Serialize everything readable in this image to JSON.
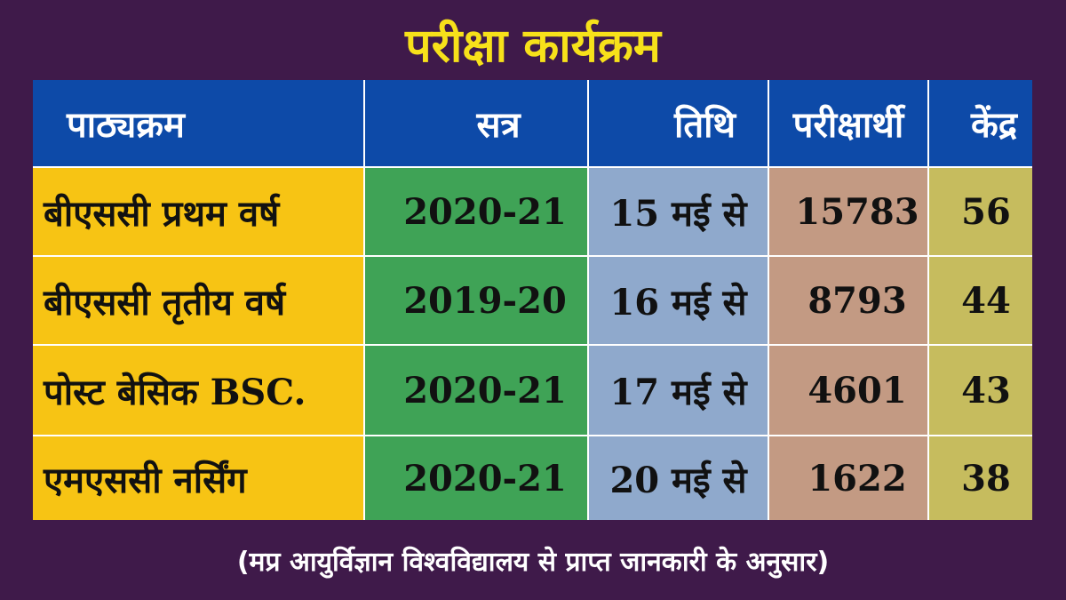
{
  "header": {
    "title": "परीक्षा कार्यक्रम"
  },
  "table": {
    "columns": [
      "पाठ्यक्रम",
      "सत्र",
      "तिथि",
      "परीक्षार्थी",
      "केंद्र"
    ],
    "rows": [
      [
        "बीएससी प्रथम वर्ष",
        "2020-21",
        "15 मई से",
        15783,
        56
      ],
      [
        "बीएससी तृतीय वर्ष",
        "2019-20",
        "16 मई से",
        8793,
        44
      ],
      [
        "पोस्ट बेसिक BSC.",
        "2020-21",
        "17 मई से",
        4601,
        43
      ],
      [
        "एमएससी नर्सिंग",
        "2020-21",
        "20 मई से",
        1622,
        38
      ]
    ]
  },
  "footer": {
    "note": "(मप्र आयुर्विज्ञान विश्वविद्यालय से प्राप्त जानकारी के अनुसार)"
  }
}
